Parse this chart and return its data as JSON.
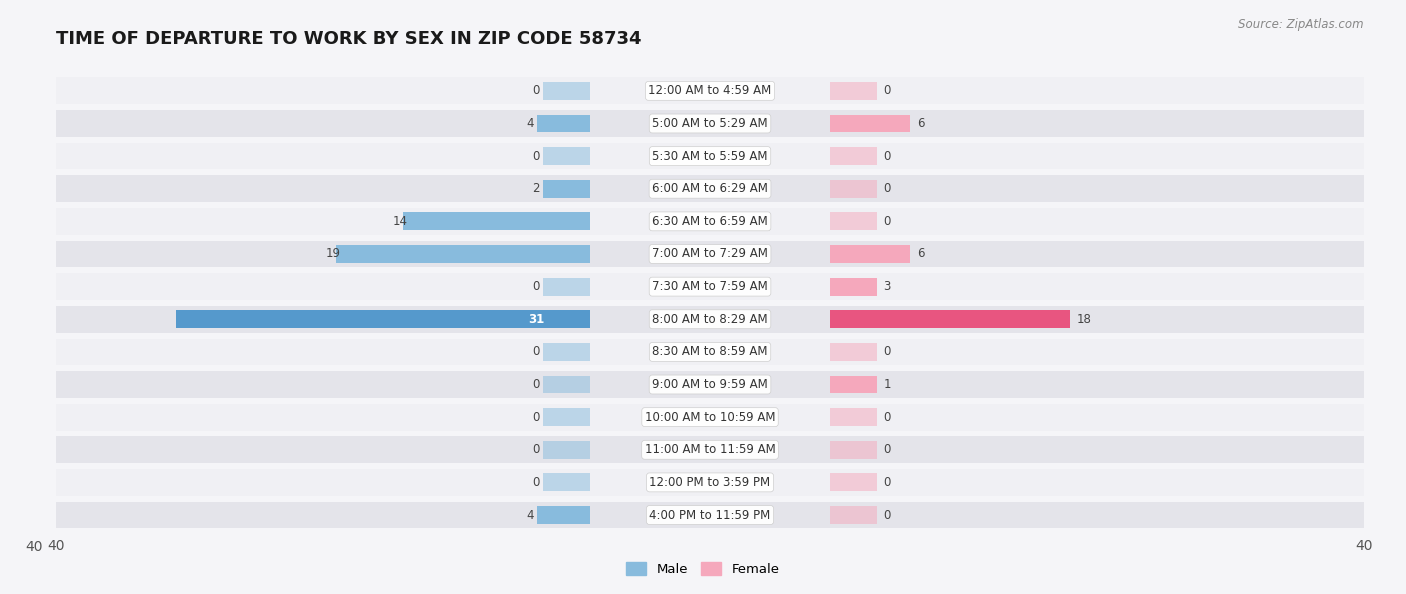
{
  "title": "TIME OF DEPARTURE TO WORK BY SEX IN ZIP CODE 58734",
  "source": "Source: ZipAtlas.com",
  "categories": [
    "12:00 AM to 4:59 AM",
    "5:00 AM to 5:29 AM",
    "5:30 AM to 5:59 AM",
    "6:00 AM to 6:29 AM",
    "6:30 AM to 6:59 AM",
    "7:00 AM to 7:29 AM",
    "7:30 AM to 7:59 AM",
    "8:00 AM to 8:29 AM",
    "8:30 AM to 8:59 AM",
    "9:00 AM to 9:59 AM",
    "10:00 AM to 10:59 AM",
    "11:00 AM to 11:59 AM",
    "12:00 PM to 3:59 PM",
    "4:00 PM to 11:59 PM"
  ],
  "male": [
    0,
    4,
    0,
    2,
    14,
    19,
    0,
    31,
    0,
    0,
    0,
    0,
    0,
    4
  ],
  "female": [
    0,
    6,
    0,
    0,
    0,
    6,
    3,
    18,
    0,
    1,
    0,
    0,
    0,
    0
  ],
  "male_color": "#88bbdd",
  "male_color_strong": "#5599cc",
  "female_color": "#f5a8bc",
  "female_color_strong": "#e85580",
  "row_bg_odd": "#f0f0f4",
  "row_bg_even": "#e4e4ea",
  "fig_bg": "#f5f5f8",
  "xlim": 40,
  "min_bar": 3.5,
  "title_fontsize": 13,
  "label_fontsize": 8.5,
  "tick_fontsize": 10,
  "source_fontsize": 8.5
}
